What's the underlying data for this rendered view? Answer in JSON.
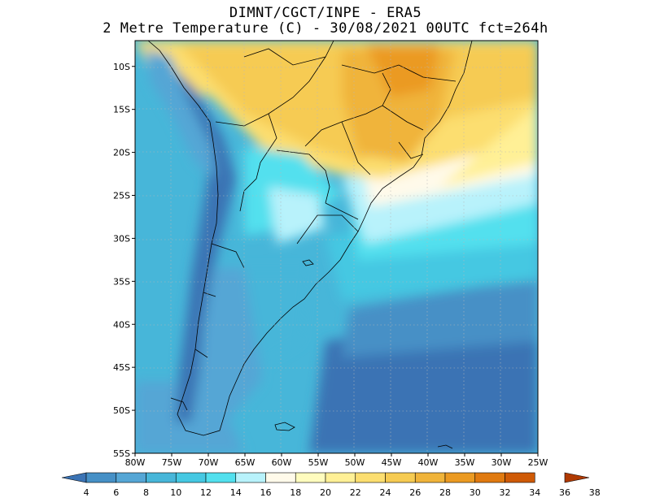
{
  "header": {
    "line1": "DIMNT/CGCT/INPE -  ERA5",
    "line2": "2 Metre Temperature (C) -  30/08/2021 00UTC fct=264h"
  },
  "map": {
    "region": "South America",
    "variable": "2 Metre Temperature",
    "units": "C",
    "lon_range": [
      -80,
      -25
    ],
    "lat_range": [
      -55,
      -7
    ],
    "lon_ticks": [
      -80,
      -75,
      -70,
      -65,
      -60,
      -55,
      -50,
      -45,
      -40,
      -35,
      -30,
      -25
    ],
    "lon_labels": [
      "80W",
      "75W",
      "70W",
      "65W",
      "60W",
      "55W",
      "50W",
      "45W",
      "40W",
      "35W",
      "30W",
      "25W"
    ],
    "lat_ticks": [
      -10,
      -15,
      -20,
      -25,
      -30,
      -35,
      -40,
      -45,
      -50,
      -55
    ],
    "lat_labels": [
      "10S",
      "15S",
      "20S",
      "25S",
      "30S",
      "35S",
      "40S",
      "45S",
      "50S",
      "55S"
    ]
  },
  "colorbar": {
    "labels": [
      "4",
      "6",
      "8",
      "10",
      "12",
      "14",
      "16",
      "18",
      "20",
      "22",
      "24",
      "26",
      "28",
      "30",
      "32",
      "34",
      "36",
      "38"
    ],
    "colors": [
      "#3b73b4",
      "#4690c6",
      "#55a6d5",
      "#47b6d9",
      "#45c8e2",
      "#52e0ee",
      "#b8f2fb",
      "#fffaea",
      "#fffcbe",
      "#fff096",
      "#fcde70",
      "#f6cb52",
      "#f0b43a",
      "#eb9a22",
      "#e07a10",
      "#cf5a06",
      "#b03a02"
    ]
  }
}
